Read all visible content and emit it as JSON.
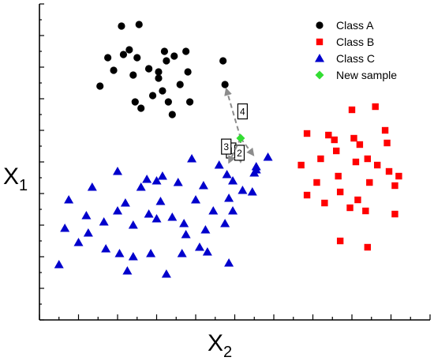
{
  "chart_data": {
    "type": "scatter",
    "xlabel": "X",
    "xlabel_sub": "2",
    "ylabel": "X",
    "ylabel_sub": "1",
    "xlim": [
      0,
      20
    ],
    "ylim": [
      0,
      20
    ],
    "x_ticks": [
      0,
      1,
      2,
      3,
      4,
      5,
      6,
      7,
      8,
      9,
      10,
      11,
      12,
      13,
      14,
      15,
      16,
      17,
      18,
      19,
      20
    ],
    "y_ticks": [
      0,
      2,
      4,
      6,
      8,
      10,
      12,
      14,
      16,
      18,
      20
    ],
    "tick_labels_shown": false,
    "grid": false,
    "legend_position": "top-right",
    "series": [
      {
        "name": "Class A",
        "marker": "circle",
        "color": "#000000",
        "points": [
          [
            4.2,
            18.6
          ],
          [
            5.1,
            18.7
          ],
          [
            3.5,
            16.6
          ],
          [
            4.6,
            17.1
          ],
          [
            6.4,
            17.0
          ],
          [
            3.8,
            15.8
          ],
          [
            7.5,
            17.0
          ],
          [
            4.3,
            16.8
          ],
          [
            5.0,
            16.6
          ],
          [
            6.5,
            16.4
          ],
          [
            6.9,
            16.7
          ],
          [
            5.6,
            15.9
          ],
          [
            7.6,
            15.7
          ],
          [
            5.6,
            15.9
          ],
          [
            6.1,
            15.7
          ],
          [
            9.4,
            16.4
          ],
          [
            3.1,
            14.8
          ],
          [
            4.8,
            15.5
          ],
          [
            6.1,
            15.3
          ],
          [
            7.2,
            14.9
          ],
          [
            9.5,
            14.9
          ],
          [
            6.3,
            14.5
          ],
          [
            5.8,
            14.2
          ],
          [
            4.9,
            13.8
          ],
          [
            6.6,
            13.8
          ],
          [
            7.7,
            13.8
          ],
          [
            6.8,
            13.0
          ],
          [
            5.2,
            13.4
          ]
        ]
      },
      {
        "name": "Class B",
        "marker": "square",
        "color": "#ff0000",
        "points": [
          [
            16.0,
            13.3
          ],
          [
            17.2,
            13.5
          ],
          [
            13.7,
            11.8
          ],
          [
            15.1,
            11.4
          ],
          [
            14.8,
            11.7
          ],
          [
            16.1,
            11.5
          ],
          [
            15.2,
            10.7
          ],
          [
            16.4,
            11.1
          ],
          [
            17.8,
            11.2
          ],
          [
            16.8,
            10.2
          ],
          [
            17.7,
            12.0
          ],
          [
            13.4,
            9.8
          ],
          [
            14.4,
            10.2
          ],
          [
            16.2,
            10.0
          ],
          [
            15.3,
            9.1
          ],
          [
            18.4,
            9.1
          ],
          [
            17.9,
            9.4
          ],
          [
            14.2,
            8.7
          ],
          [
            16.9,
            8.7
          ],
          [
            18.2,
            8.5
          ],
          [
            13.7,
            7.9
          ],
          [
            15.4,
            8.1
          ],
          [
            16.3,
            7.6
          ],
          [
            14.6,
            7.4
          ],
          [
            15.9,
            7.1
          ],
          [
            16.7,
            6.9
          ],
          [
            18.2,
            6.7
          ],
          [
            15.4,
            5.0
          ],
          [
            16.8,
            4.6
          ],
          [
            17.3,
            9.8
          ]
        ]
      },
      {
        "name": "Class C",
        "marker": "triangle",
        "color": "#0000cc",
        "points": [
          [
            7.8,
            10.2
          ],
          [
            9.2,
            9.8
          ],
          [
            11.1,
            9.7
          ],
          [
            4.0,
            9.4
          ],
          [
            6.3,
            9.1
          ],
          [
            9.6,
            9.2
          ],
          [
            5.5,
            8.9
          ],
          [
            2.7,
            8.4
          ],
          [
            5.2,
            8.4
          ],
          [
            6.0,
            8.8
          ],
          [
            7.1,
            8.7
          ],
          [
            8.4,
            8.5
          ],
          [
            9.9,
            8.8
          ],
          [
            10.4,
            8.2
          ],
          [
            11.0,
            9.3
          ],
          [
            1.5,
            7.6
          ],
          [
            4.4,
            7.4
          ],
          [
            6.2,
            7.5
          ],
          [
            8.0,
            7.6
          ],
          [
            9.7,
            7.7
          ],
          [
            10.9,
            8.1
          ],
          [
            2.4,
            6.6
          ],
          [
            4.0,
            6.9
          ],
          [
            5.6,
            6.7
          ],
          [
            6.8,
            6.5
          ],
          [
            8.9,
            6.9
          ],
          [
            9.9,
            6.9
          ],
          [
            3.3,
            6.2
          ],
          [
            4.8,
            6.0
          ],
          [
            6.0,
            6.4
          ],
          [
            7.4,
            6.1
          ],
          [
            8.5,
            5.7
          ],
          [
            1.3,
            5.8
          ],
          [
            2.5,
            5.5
          ],
          [
            7.5,
            5.4
          ],
          [
            9.5,
            6.1
          ],
          [
            3.4,
            4.5
          ],
          [
            4.8,
            4.0
          ],
          [
            5.7,
            4.2
          ],
          [
            7.3,
            4.2
          ],
          [
            8.6,
            4.3
          ],
          [
            2.0,
            4.9
          ],
          [
            4.1,
            4.2
          ],
          [
            8.2,
            4.6
          ],
          [
            1.0,
            3.5
          ],
          [
            4.5,
            3.1
          ],
          [
            6.5,
            2.9
          ],
          [
            9.7,
            3.6
          ],
          [
            11.1,
            9.5
          ],
          [
            11.7,
            10.3
          ]
        ]
      },
      {
        "name": "New sample",
        "marker": "diamond",
        "color": "#33dd33",
        "points": [
          [
            10.3,
            11.5
          ]
        ]
      }
    ],
    "annotations": [
      {
        "label": "1",
        "from": [
          10.3,
          11.5
        ],
        "to": [
          10.3,
          9.7
        ]
      },
      {
        "label": "2",
        "from": [
          10.3,
          11.5
        ],
        "to": [
          11.1,
          10.2
        ]
      },
      {
        "label": "3",
        "from": [
          10.3,
          11.5
        ],
        "to": [
          9.6,
          9.7
        ]
      },
      {
        "label": "4",
        "from": [
          10.3,
          11.5
        ],
        "to": [
          9.5,
          14.9
        ]
      }
    ]
  }
}
